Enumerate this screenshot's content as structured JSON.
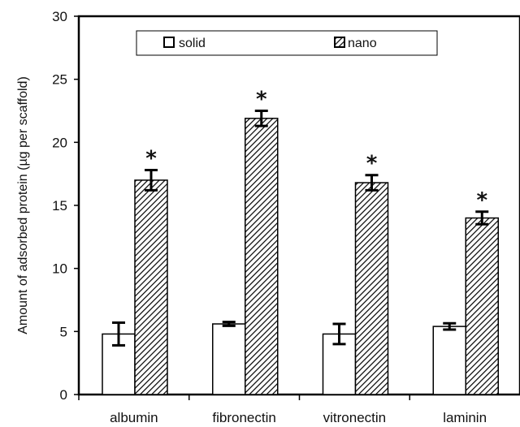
{
  "chart_data": {
    "type": "bar",
    "categories": [
      "albumin",
      "fibronectin",
      "vitronectin",
      "laminin"
    ],
    "series": [
      {
        "name": "solid",
        "values": [
          4.8,
          5.6,
          4.8,
          5.4
        ],
        "errors": [
          0.9,
          0.15,
          0.8,
          0.25
        ],
        "style": "white",
        "significance": [
          "",
          "",
          "",
          ""
        ]
      },
      {
        "name": "nano",
        "values": [
          17.0,
          21.9,
          16.8,
          14.0
        ],
        "errors": [
          0.8,
          0.6,
          0.6,
          0.5
        ],
        "style": "hatched",
        "significance": [
          "*",
          "*",
          "*",
          "*"
        ]
      }
    ],
    "ylabel": "Amount of adsorbed protein (µg per scaffold)",
    "xlabel": "",
    "ylim": [
      0,
      30
    ],
    "yticks": [
      0,
      5,
      10,
      15,
      20,
      25,
      30
    ],
    "legend_position": "top",
    "grid": false,
    "colors": {
      "stroke": "#000000",
      "solid_fill": "#ffffff",
      "nano_hatch": "#000000"
    }
  }
}
